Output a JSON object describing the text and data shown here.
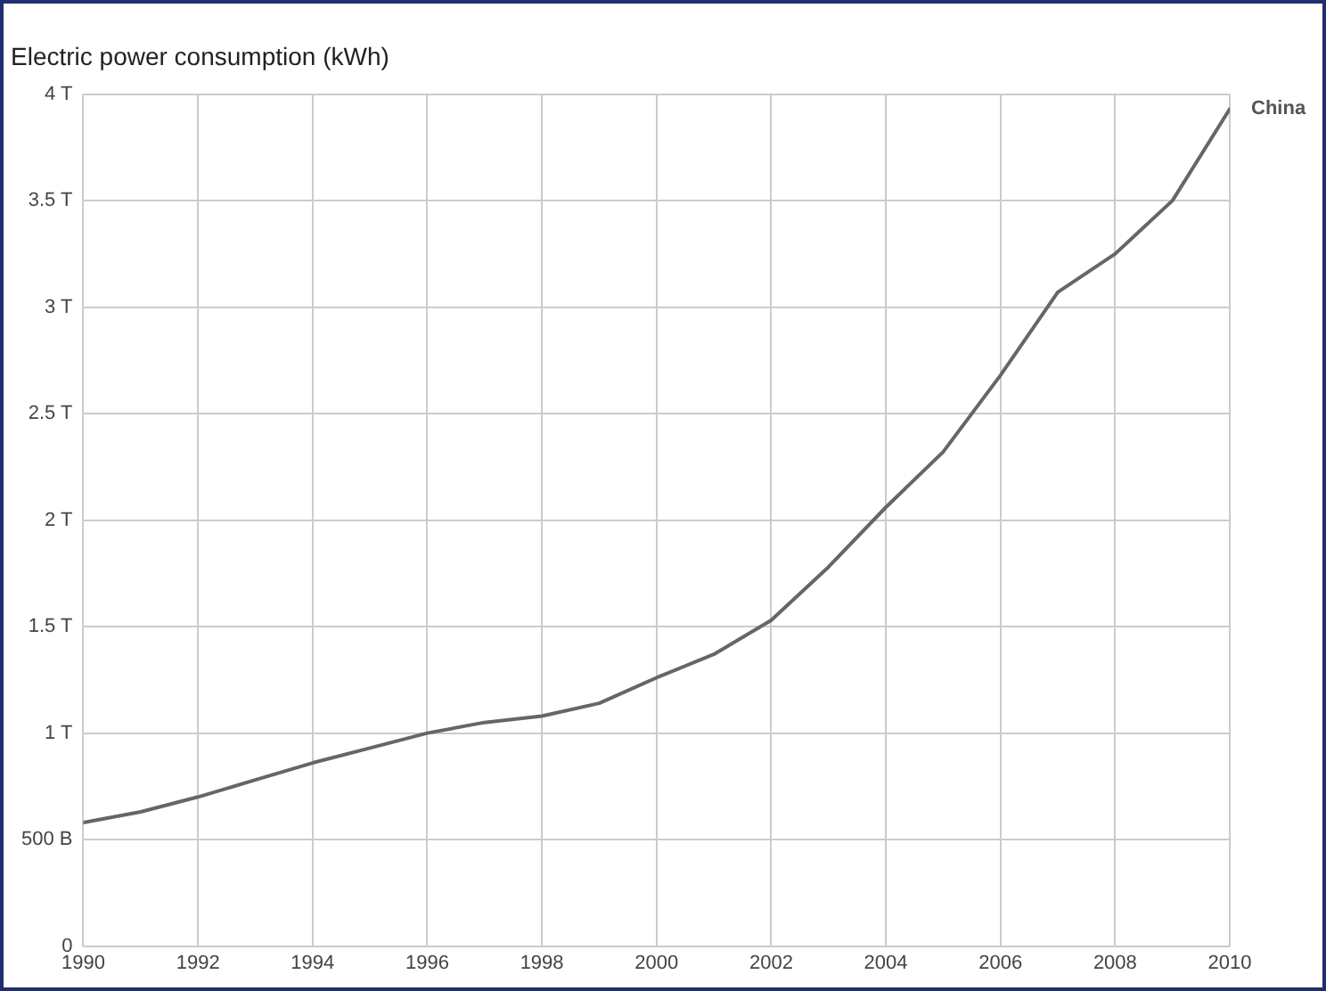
{
  "chart_data": {
    "type": "line",
    "title": "Electric power consumption (kWh)",
    "x": [
      1990,
      1991,
      1992,
      1993,
      1994,
      1995,
      1996,
      1997,
      1998,
      1999,
      2000,
      2001,
      2002,
      2003,
      2004,
      2005,
      2006,
      2007,
      2008,
      2009,
      2010
    ],
    "series": [
      {
        "name": "China",
        "color": "#666666",
        "values": [
          580000000000,
          630000000000,
          700000000000,
          780000000000,
          860000000000,
          930000000000,
          1000000000000,
          1050000000000,
          1080000000000,
          1140000000000,
          1260000000000,
          1370000000000,
          1530000000000,
          1780000000000,
          2060000000000,
          2320000000000,
          2680000000000,
          3070000000000,
          3250000000000,
          3500000000000,
          3930000000000
        ]
      }
    ],
    "xlim": [
      1990,
      2010
    ],
    "xticks": [
      1990,
      1992,
      1994,
      1996,
      1998,
      2000,
      2002,
      2004,
      2006,
      2008,
      2010
    ],
    "ylim": [
      0,
      4000000000000
    ],
    "yticks": [
      0,
      {
        "value": 500000000000,
        "label": "500 B"
      },
      {
        "value": 1000000000000,
        "label": "1 T"
      },
      {
        "value": 1500000000000,
        "label": "1.5 T"
      },
      {
        "value": 2000000000000,
        "label": "2 T"
      },
      {
        "value": 2500000000000,
        "label": "2.5 T"
      },
      {
        "value": 3000000000000,
        "label": "3 T"
      },
      {
        "value": 3500000000000,
        "label": "3.5 T"
      },
      {
        "value": 4000000000000,
        "label": "4 T"
      }
    ],
    "grid": true,
    "legend": false,
    "marker": "none",
    "line_style": "solid"
  }
}
